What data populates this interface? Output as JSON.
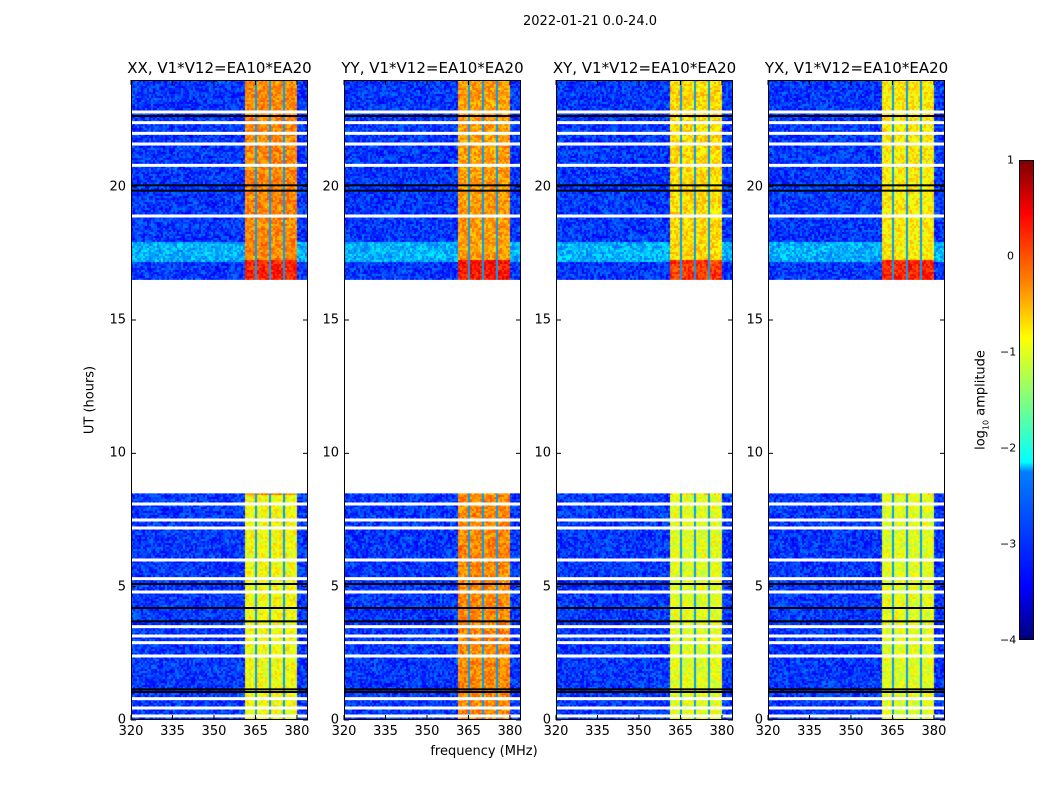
{
  "chart_data": {
    "type": "heatmap",
    "title": "2022-01-21 0.0-24.0",
    "xlabel": "frequency (MHz)",
    "ylabel": "UT (hours)",
    "xlim": [
      320,
      384
    ],
    "ylim": [
      0,
      24
    ],
    "xticks": [
      "320",
      "335",
      "350",
      "365",
      "380"
    ],
    "xtick_values": [
      320,
      335,
      350,
      365,
      380
    ],
    "yticks": [
      "0",
      "5",
      "10",
      "15",
      "20"
    ],
    "ytick_values": [
      0,
      5,
      10,
      15,
      20
    ],
    "colorbar": {
      "label": "log₁₀ amplitude",
      "label_main": "log",
      "label_sub": "10",
      "label_rest": " amplitude",
      "range": [
        -4,
        1
      ],
      "ticks": [
        "1",
        "0",
        "−1",
        "−2",
        "−3",
        "−4"
      ],
      "tick_values": [
        1,
        0,
        -1,
        -2,
        -3,
        -4
      ],
      "colormap": "jet"
    },
    "data_segments_hours": [
      [
        0,
        8.5
      ],
      [
        16.5,
        24
      ]
    ],
    "gap_hours": [
      8.5,
      16.5
    ],
    "flagged_white_hours": [
      0.15,
      0.45,
      0.8,
      2.4,
      2.9,
      3.15,
      3.5,
      4.8,
      5.3,
      6.0,
      7.2,
      7.5,
      8.1,
      18.9,
      20.8,
      21.6,
      22.0,
      22.4,
      22.8
    ],
    "dark_line_hours": [
      1.05,
      1.15,
      3.7,
      4.2,
      5.1,
      19.85,
      20.05,
      22.65
    ],
    "background_band_mhz": [
      320,
      360.5
    ],
    "background_log_amp": -3.1,
    "subbands_mhz": [
      [
        360.5,
        365
      ],
      [
        365,
        370
      ],
      [
        370,
        375
      ],
      [
        375,
        380
      ]
    ],
    "high_band_edge_mhz": [
      380,
      384
    ],
    "panels": [
      {
        "title": "XX, V1*V12=EA10*EA20",
        "band_log_amp_lower": -0.9,
        "band_log_amp_upper": -0.3,
        "band_log_amp_peak": 0.2
      },
      {
        "title": "YY, V1*V12=EA10*EA20",
        "band_log_amp_lower": -0.3,
        "band_log_amp_upper": -0.4,
        "band_log_amp_peak": 0.3
      },
      {
        "title": "XY, V1*V12=EA10*EA20",
        "band_log_amp_lower": -1.0,
        "band_log_amp_upper": -0.7,
        "band_log_amp_peak": 0.1
      },
      {
        "title": "YX, V1*V12=EA10*EA20",
        "band_log_amp_lower": -1.0,
        "band_log_amp_upper": -0.8,
        "band_log_amp_peak": 0.2
      }
    ]
  }
}
